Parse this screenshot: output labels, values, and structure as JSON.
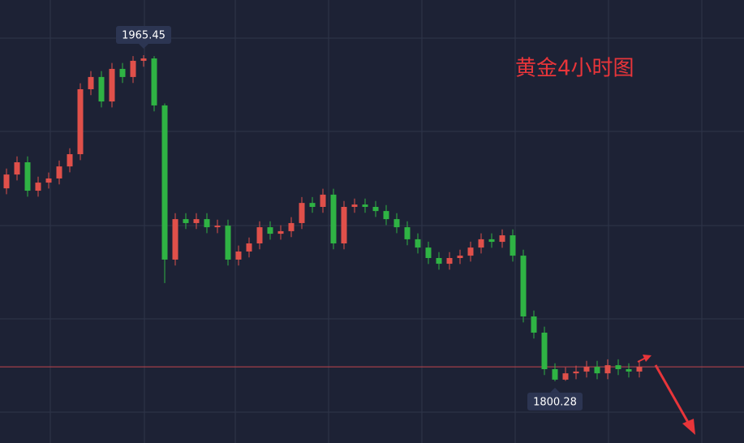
{
  "chart_data": {
    "type": "candlestick",
    "title": "黄金4小时图",
    "title_color": "#e8353a",
    "up_color": "#e0504a",
    "down_color": "#2fb344",
    "ylim": [
      1769.0,
      1993.4
    ],
    "price_line": 1807.6,
    "price_line_color": "#c2454d",
    "annotations": [
      {
        "text": "1965.45",
        "value": 1965.45
      },
      {
        "text": "1800.28",
        "value": 1800.28
      }
    ],
    "open": [
      1898.0,
      1905.0,
      1911.2,
      1896.8,
      1900.9,
      1903.0,
      1909.1,
      1915.3,
      1948.2,
      1954.4,
      1942.0,
      1958.5,
      1954.4,
      1962.6,
      1963.8,
      1940.0,
      1861.9,
      1882.4,
      1880.4,
      1882.4,
      1878.3,
      1879.1,
      1861.9,
      1866.0,
      1870.1,
      1878.3,
      1875.0,
      1876.3,
      1880.4,
      1890.6,
      1888.6,
      1894.8,
      1870.1,
      1888.6,
      1889.8,
      1888.6,
      1886.5,
      1882.4,
      1878.3,
      1872.2,
      1868.0,
      1862.7,
      1859.8,
      1862.7,
      1863.9,
      1868.0,
      1872.2,
      1870.9,
      1874.2,
      1863.9,
      1833.1,
      1824.9,
      1806.4,
      1801.1,
      1804.3,
      1805.2,
      1807.6,
      1804.3,
      1808.4,
      1806.4,
      1805.2
    ],
    "high": [
      1908.0,
      1914.2,
      1914.2,
      1903.9,
      1906.0,
      1912.1,
      1918.3,
      1951.2,
      1957.4,
      1957.4,
      1961.5,
      1961.5,
      1965.0,
      1965.45,
      1965.0,
      1941.0,
      1885.4,
      1885.4,
      1885.4,
      1885.4,
      1882.1,
      1882.1,
      1869.0,
      1873.1,
      1881.3,
      1881.3,
      1879.3,
      1883.4,
      1893.6,
      1893.6,
      1897.8,
      1897.8,
      1891.6,
      1892.8,
      1892.8,
      1891.6,
      1889.5,
      1885.4,
      1881.3,
      1875.2,
      1871.0,
      1865.7,
      1865.7,
      1866.9,
      1871.0,
      1875.2,
      1875.2,
      1877.2,
      1877.2,
      1866.9,
      1836.1,
      1827.9,
      1809.4,
      1807.3,
      1808.2,
      1810.6,
      1810.6,
      1811.4,
      1811.4,
      1809.4,
      1810.6
    ],
    "low": [
      1895.0,
      1902.0,
      1893.8,
      1893.8,
      1897.9,
      1900.0,
      1906.1,
      1912.3,
      1945.2,
      1939.0,
      1939.0,
      1951.4,
      1951.4,
      1959.6,
      1937.0,
      1850.0,
      1858.9,
      1877.4,
      1877.4,
      1875.3,
      1875.3,
      1858.9,
      1858.9,
      1863.0,
      1867.1,
      1872.0,
      1872.0,
      1873.3,
      1877.4,
      1885.6,
      1885.6,
      1867.1,
      1867.1,
      1885.6,
      1885.6,
      1883.5,
      1879.4,
      1875.3,
      1869.2,
      1865.0,
      1859.7,
      1856.8,
      1856.8,
      1859.7,
      1860.9,
      1865.0,
      1867.9,
      1867.9,
      1860.9,
      1830.1,
      1821.9,
      1803.4,
      1800.28,
      1800.5,
      1801.3,
      1802.2,
      1801.3,
      1801.3,
      1803.4,
      1802.2,
      1802.2
    ],
    "close": [
      1905.0,
      1911.2,
      1896.8,
      1900.9,
      1903.0,
      1909.1,
      1915.3,
      1948.2,
      1954.4,
      1942.0,
      1958.5,
      1954.4,
      1962.6,
      1963.8,
      1940.0,
      1861.9,
      1882.4,
      1880.4,
      1882.4,
      1878.3,
      1879.1,
      1861.9,
      1866.0,
      1870.1,
      1878.3,
      1875.0,
      1876.3,
      1880.4,
      1890.6,
      1888.6,
      1894.8,
      1870.1,
      1888.6,
      1889.8,
      1888.6,
      1886.5,
      1882.4,
      1878.3,
      1872.2,
      1868.0,
      1862.7,
      1859.8,
      1862.7,
      1863.9,
      1868.0,
      1872.2,
      1870.9,
      1874.2,
      1863.9,
      1833.1,
      1824.9,
      1806.4,
      1801.1,
      1804.3,
      1805.2,
      1807.6,
      1804.3,
      1808.4,
      1806.4,
      1805.2,
      1807.6
    ]
  }
}
